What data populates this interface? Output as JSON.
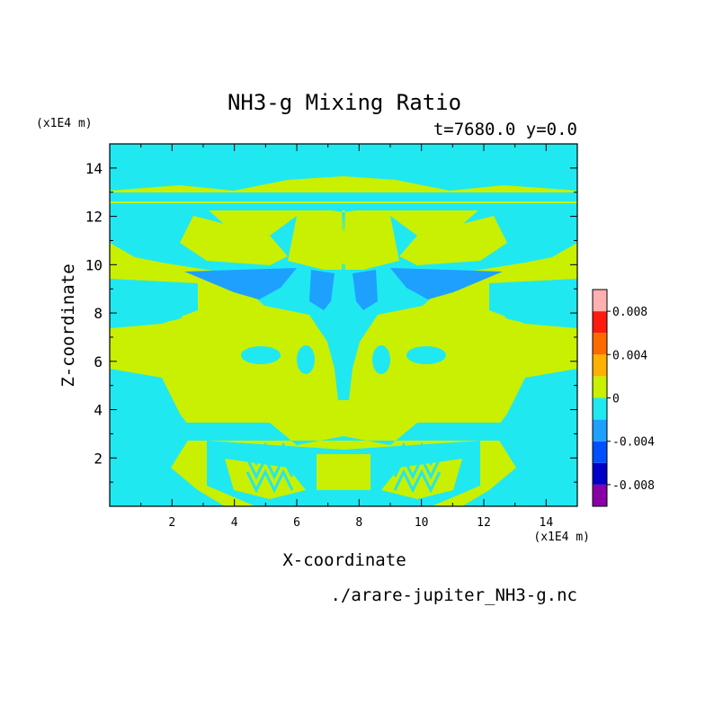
{
  "chart_data": {
    "type": "heatmap",
    "title": "NH3-g Mixing Ratio",
    "subtitle": "t=7680.0 y=0.0",
    "xlabel": "X-coordinate",
    "ylabel": "Z-coordinate",
    "x_unit": "(x1E4 m)",
    "y_unit": "(x1E4 m)",
    "xlim": [
      0,
      15
    ],
    "ylim": [
      0,
      15
    ],
    "x_ticks": [
      2,
      4,
      6,
      8,
      10,
      12,
      14
    ],
    "y_ticks": [
      2,
      4,
      6,
      8,
      10,
      12,
      14
    ],
    "grid": false,
    "colorbar": {
      "placement": "right",
      "levels": [
        -0.01,
        -0.008,
        -0.006,
        -0.004,
        -0.002,
        0,
        0.002,
        0.004,
        0.006,
        0.008,
        0.01
      ],
      "colors": [
        "#8a00a8",
        "#0000c8",
        "#0050ff",
        "#1ea0ff",
        "#20e8f0",
        "#c8f000",
        "#ffb000",
        "#ff6a00",
        "#ff1a10",
        "#ffb0b0"
      ],
      "tick_labels": [
        "-0.008",
        "-0.004",
        "0",
        "0.004",
        "0.008"
      ],
      "tick_values": [
        -0.008,
        -0.004,
        0,
        0.004,
        0.008
      ]
    },
    "field_levels_present": [
      "-0.004 to -0.002",
      "-0.002 to 0",
      "0 to 0.002"
    ],
    "source": "./arare-jupiter_NH3-g.nc"
  }
}
